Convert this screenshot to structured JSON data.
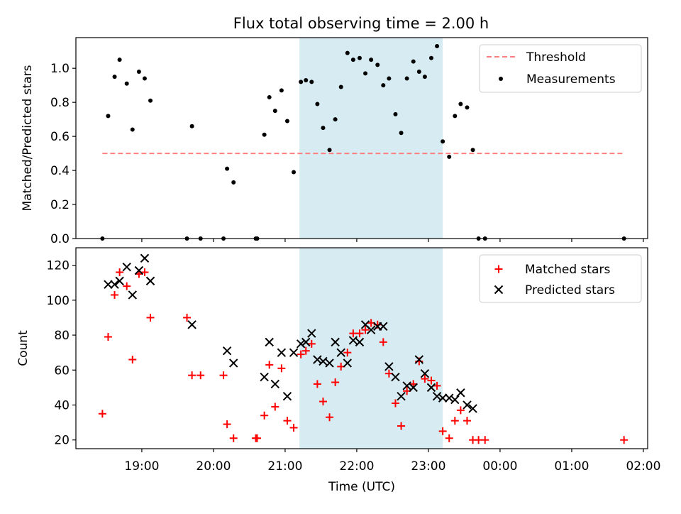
{
  "title": "Flux total observing time = 2.00 h",
  "colors": {
    "threshold": "#ff7f7f",
    "measurement": "#000000",
    "matched": "#ff0000",
    "predicted": "#000000",
    "span": "#add8e6"
  },
  "chart_data": [
    {
      "type": "scatter",
      "ylabel": "Matched/Predicted stars",
      "ylim": [
        0,
        1.18
      ],
      "yticks": [
        0.0,
        0.2,
        0.4,
        0.6,
        0.8,
        1.0
      ],
      "ytick_labels": [
        "0.0",
        "0.2",
        "0.4",
        "0.6",
        "0.8",
        "1.0"
      ],
      "xlim_hours": [
        18.08,
        26.06
      ],
      "highlight_span_hours": [
        21.2,
        23.2
      ],
      "threshold": {
        "name": "Threshold",
        "value": 0.5,
        "x_hours": [
          18.45,
          25.73
        ]
      },
      "legend": {
        "position": "upper right",
        "entries": [
          "Threshold",
          "Measurements"
        ]
      },
      "series": [
        {
          "name": "Measurements",
          "points": [
            [
              18.45,
              0.0
            ],
            [
              18.53,
              0.72
            ],
            [
              18.62,
              0.95
            ],
            [
              18.69,
              1.05
            ],
            [
              18.79,
              0.91
            ],
            [
              18.87,
              0.64
            ],
            [
              18.96,
              0.98
            ],
            [
              19.04,
              0.94
            ],
            [
              19.12,
              0.81
            ],
            [
              19.63,
              0.0
            ],
            [
              19.7,
              0.66
            ],
            [
              19.82,
              0.0
            ],
            [
              20.14,
              0.0
            ],
            [
              20.19,
              0.41
            ],
            [
              20.28,
              0.33
            ],
            [
              20.59,
              0.0
            ],
            [
              20.61,
              0.0
            ],
            [
              20.71,
              0.61
            ],
            [
              20.78,
              0.83
            ],
            [
              20.86,
              0.75
            ],
            [
              20.95,
              0.87
            ],
            [
              21.03,
              0.69
            ],
            [
              21.12,
              0.39
            ],
            [
              21.22,
              0.92
            ],
            [
              21.29,
              0.93
            ],
            [
              21.37,
              0.92
            ],
            [
              21.45,
              0.79
            ],
            [
              21.53,
              0.65
            ],
            [
              21.62,
              0.52
            ],
            [
              21.7,
              0.7
            ],
            [
              21.78,
              0.89
            ],
            [
              21.87,
              1.09
            ],
            [
              21.95,
              1.05
            ],
            [
              22.04,
              1.06
            ],
            [
              22.12,
              0.97
            ],
            [
              22.2,
              1.05
            ],
            [
              22.29,
              1.02
            ],
            [
              22.37,
              0.9
            ],
            [
              22.45,
              0.94
            ],
            [
              22.54,
              0.73
            ],
            [
              22.62,
              0.62
            ],
            [
              22.7,
              0.94
            ],
            [
              22.79,
              1.04
            ],
            [
              22.87,
              0.98
            ],
            [
              22.95,
              0.95
            ],
            [
              23.04,
              1.06
            ],
            [
              23.12,
              1.13
            ],
            [
              23.2,
              0.57
            ],
            [
              23.29,
              0.48
            ],
            [
              23.37,
              0.72
            ],
            [
              23.45,
              0.79
            ],
            [
              23.54,
              0.77
            ],
            [
              23.62,
              0.52
            ],
            [
              23.7,
              0.0
            ],
            [
              23.79,
              0.0
            ],
            [
              25.73,
              0.0
            ]
          ]
        }
      ]
    },
    {
      "type": "scatter",
      "title": "",
      "xlabel": "Time (UTC)",
      "ylabel": "Count",
      "ylim": [
        15,
        130
      ],
      "yticks": [
        20,
        40,
        60,
        80,
        100,
        120
      ],
      "ytick_labels": [
        "20",
        "40",
        "60",
        "80",
        "100",
        "120"
      ],
      "xlim_hours": [
        18.08,
        26.06
      ],
      "xticks_hours": [
        19,
        20,
        21,
        22,
        23,
        24,
        25,
        26
      ],
      "xtick_labels": [
        "19:00",
        "20:00",
        "21:00",
        "22:00",
        "23:00",
        "00:00",
        "01:00",
        "02:00"
      ],
      "highlight_span_hours": [
        21.2,
        23.2
      ],
      "legend": {
        "position": "upper right",
        "entries": [
          "Matched stars",
          "Predicted stars"
        ]
      },
      "series": [
        {
          "name": "Matched stars",
          "marker": "plus",
          "points": [
            [
              18.45,
              35
            ],
            [
              18.53,
              79
            ],
            [
              18.62,
              103
            ],
            [
              18.69,
              116
            ],
            [
              18.79,
              108
            ],
            [
              18.87,
              66
            ],
            [
              18.96,
              115
            ],
            [
              19.04,
              116
            ],
            [
              19.12,
              90
            ],
            [
              19.63,
              90
            ],
            [
              19.7,
              57
            ],
            [
              19.82,
              57
            ],
            [
              20.14,
              57
            ],
            [
              20.19,
              29
            ],
            [
              20.28,
              21
            ],
            [
              20.59,
              21
            ],
            [
              20.61,
              21
            ],
            [
              20.71,
              34
            ],
            [
              20.78,
              63
            ],
            [
              20.86,
              39
            ],
            [
              20.95,
              61
            ],
            [
              21.03,
              31
            ],
            [
              21.12,
              27
            ],
            [
              21.22,
              69
            ],
            [
              21.29,
              71
            ],
            [
              21.37,
              75
            ],
            [
              21.45,
              52
            ],
            [
              21.53,
              42
            ],
            [
              21.62,
              33
            ],
            [
              21.7,
              53
            ],
            [
              21.78,
              62
            ],
            [
              21.87,
              70
            ],
            [
              21.95,
              81
            ],
            [
              22.04,
              81
            ],
            [
              22.12,
              83
            ],
            [
              22.2,
              87
            ],
            [
              22.29,
              86
            ],
            [
              22.37,
              76
            ],
            [
              22.45,
              58
            ],
            [
              22.54,
              41
            ],
            [
              22.62,
              28
            ],
            [
              22.7,
              48
            ],
            [
              22.79,
              52
            ],
            [
              22.87,
              65
            ],
            [
              22.95,
              55
            ],
            [
              23.04,
              54
            ],
            [
              23.12,
              51
            ],
            [
              23.2,
              25
            ],
            [
              23.29,
              21
            ],
            [
              23.37,
              31
            ],
            [
              23.45,
              37
            ],
            [
              23.54,
              31
            ],
            [
              23.62,
              20
            ],
            [
              23.7,
              20
            ],
            [
              23.79,
              20
            ],
            [
              25.73,
              20
            ]
          ]
        },
        {
          "name": "Predicted stars",
          "marker": "x",
          "points": [
            [
              18.53,
              109
            ],
            [
              18.62,
              109
            ],
            [
              18.69,
              111
            ],
            [
              18.79,
              119
            ],
            [
              18.87,
              103
            ],
            [
              18.96,
              117
            ],
            [
              19.04,
              124
            ],
            [
              19.12,
              111
            ],
            [
              19.7,
              86
            ],
            [
              20.19,
              71
            ],
            [
              20.28,
              64
            ],
            [
              20.71,
              56
            ],
            [
              20.78,
              76
            ],
            [
              20.86,
              52
            ],
            [
              20.95,
              70
            ],
            [
              21.03,
              45
            ],
            [
              21.12,
              70
            ],
            [
              21.22,
              75
            ],
            [
              21.29,
              76
            ],
            [
              21.37,
              81
            ],
            [
              21.45,
              66
            ],
            [
              21.53,
              65
            ],
            [
              21.62,
              64
            ],
            [
              21.7,
              76
            ],
            [
              21.78,
              70
            ],
            [
              21.87,
              64
            ],
            [
              21.95,
              77
            ],
            [
              22.04,
              76
            ],
            [
              22.12,
              86
            ],
            [
              22.2,
              83
            ],
            [
              22.29,
              85
            ],
            [
              22.37,
              85
            ],
            [
              22.45,
              62
            ],
            [
              22.54,
              56
            ],
            [
              22.62,
              45
            ],
            [
              22.7,
              51
            ],
            [
              22.79,
              50
            ],
            [
              22.87,
              66
            ],
            [
              22.95,
              58
            ],
            [
              23.04,
              50
            ],
            [
              23.12,
              45
            ],
            [
              23.2,
              44
            ],
            [
              23.29,
              44
            ],
            [
              23.37,
              43
            ],
            [
              23.45,
              47
            ],
            [
              23.54,
              40
            ],
            [
              23.62,
              38
            ]
          ]
        }
      ]
    }
  ]
}
